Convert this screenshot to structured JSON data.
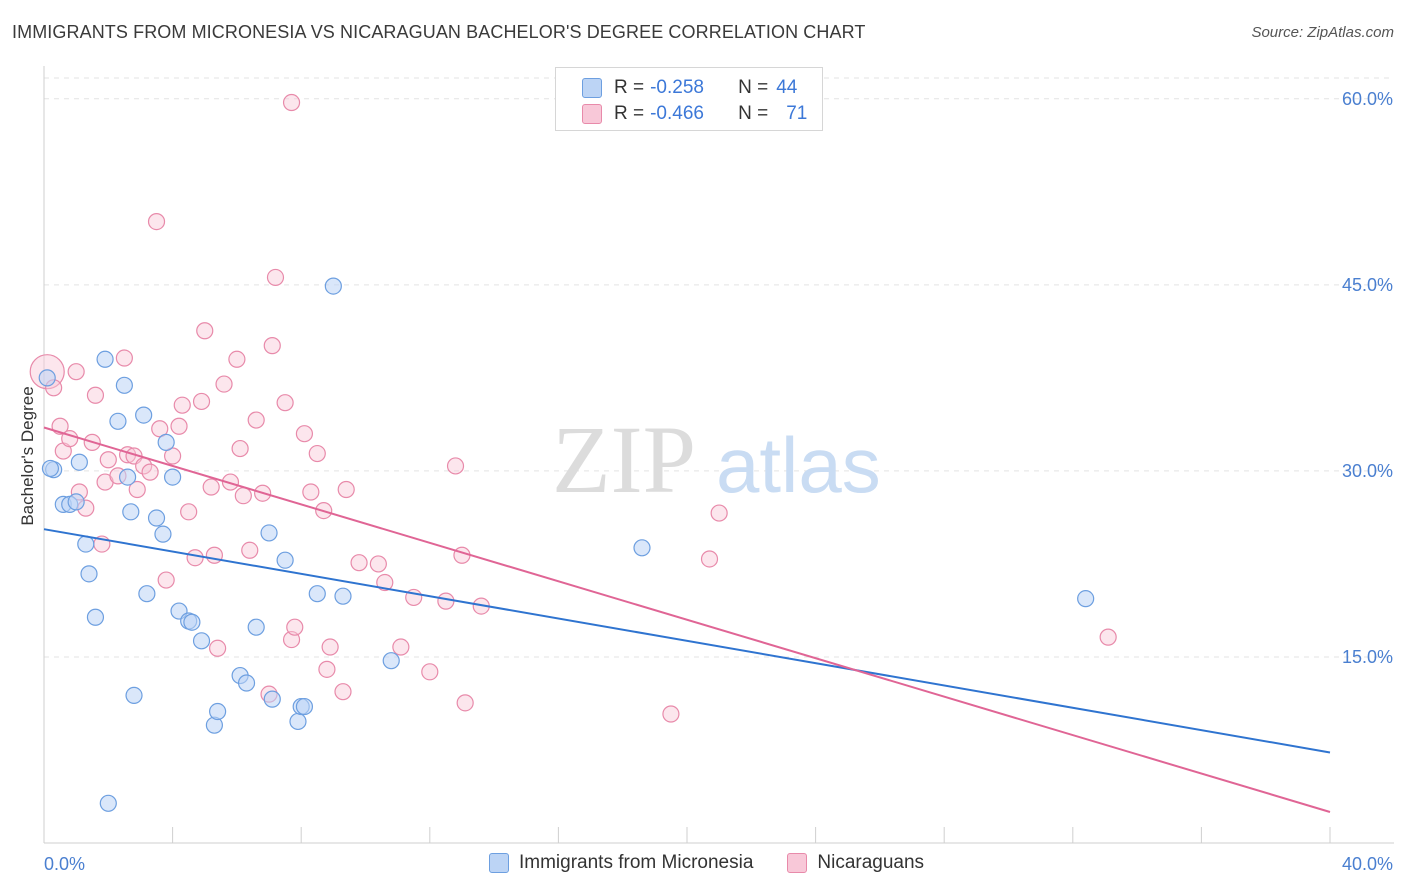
{
  "title": "IMMIGRANTS FROM MICRONESIA VS NICARAGUAN BACHELOR'S DEGREE CORRELATION CHART",
  "source": "Source: ZipAtlas.com",
  "watermark": {
    "zip": "ZIP",
    "atlas": "atlas"
  },
  "legend": {
    "rows": [
      {
        "r_label": "R =",
        "r_value": "-0.258",
        "n_label": "N =",
        "n_value": "44"
      },
      {
        "r_label": "R =",
        "r_value": "-0.466",
        "n_label": "N =",
        "n_value": "71"
      }
    ]
  },
  "bottom_legend": {
    "series1": "Immigrants from Micronesia",
    "series2": "Nicaraguans"
  },
  "colors": {
    "blue_fill": "#bcd4f5",
    "blue_stroke": "#6d9fe0",
    "blue_line": "#2f74d0",
    "pink_fill": "#f8c8d8",
    "pink_stroke": "#e88aaa",
    "pink_line": "#e06595",
    "grid": "#e3e3e3",
    "tick_text": "#4a7fd0"
  },
  "chart_data": {
    "type": "scatter",
    "title": "IMMIGRANTS FROM MICRONESIA VS NICARAGUAN BACHELOR'S DEGREE CORRELATION CHART",
    "xlabel": "",
    "ylabel": "Bachelor's Degree",
    "xlim": [
      0,
      40
    ],
    "ylim": [
      0,
      62
    ],
    "x_tick_labels": [
      "0.0%",
      "40.0%"
    ],
    "y_ticks": [
      15,
      30,
      45,
      60
    ],
    "y_tick_labels": [
      "15.0%",
      "30.0%",
      "45.0%",
      "60.0%"
    ],
    "grid": "horizontal dashed",
    "legend_position": "top-center",
    "series": [
      {
        "name": "Immigrants from Micronesia",
        "R": -0.258,
        "N": 44,
        "trend": {
          "x": [
            0,
            40
          ],
          "y": [
            25.3,
            7.3
          ]
        },
        "points": [
          [
            0.1,
            37.5
          ],
          [
            0.3,
            30.1
          ],
          [
            0.6,
            27.3
          ],
          [
            0.8,
            27.3
          ],
          [
            1.1,
            30.7
          ],
          [
            1.3,
            24.1
          ],
          [
            1.4,
            21.7
          ],
          [
            1.6,
            18.2
          ],
          [
            1.9,
            39.0
          ],
          [
            2.3,
            34.0
          ],
          [
            2.5,
            36.9
          ],
          [
            2.6,
            29.5
          ],
          [
            2.7,
            26.7
          ],
          [
            2.8,
            11.9
          ],
          [
            3.1,
            34.5
          ],
          [
            3.2,
            20.1
          ],
          [
            3.5,
            26.2
          ],
          [
            3.7,
            24.9
          ],
          [
            3.8,
            32.3
          ],
          [
            4.0,
            29.5
          ],
          [
            4.2,
            18.7
          ],
          [
            4.5,
            17.9
          ],
          [
            4.9,
            16.3
          ],
          [
            5.3,
            9.5
          ],
          [
            5.4,
            10.6
          ],
          [
            6.1,
            13.5
          ],
          [
            6.3,
            12.9
          ],
          [
            6.6,
            17.4
          ],
          [
            7.0,
            25.0
          ],
          [
            7.1,
            11.6
          ],
          [
            7.5,
            22.8
          ],
          [
            7.9,
            9.8
          ],
          [
            8.0,
            11.0
          ],
          [
            8.1,
            11.0
          ],
          [
            8.5,
            20.1
          ],
          [
            9.0,
            44.9
          ],
          [
            9.3,
            19.9
          ],
          [
            10.8,
            14.7
          ],
          [
            18.6,
            23.8
          ],
          [
            32.4,
            19.7
          ],
          [
            2.0,
            3.2
          ],
          [
            0.2,
            30.2
          ],
          [
            1.0,
            27.5
          ],
          [
            4.6,
            17.8
          ]
        ]
      },
      {
        "name": "Nicaraguans",
        "R": -0.466,
        "N": 71,
        "trend": {
          "x": [
            0,
            40
          ],
          "y": [
            33.5,
            2.5
          ]
        },
        "points": [
          [
            0.1,
            38.0
          ],
          [
            0.3,
            36.7
          ],
          [
            0.5,
            33.6
          ],
          [
            0.6,
            31.6
          ],
          [
            0.8,
            32.6
          ],
          [
            1.0,
            38.0
          ],
          [
            1.1,
            28.3
          ],
          [
            1.3,
            27.0
          ],
          [
            1.5,
            32.3
          ],
          [
            1.6,
            36.1
          ],
          [
            1.8,
            24.1
          ],
          [
            1.9,
            29.1
          ],
          [
            2.0,
            30.9
          ],
          [
            2.3,
            29.6
          ],
          [
            2.5,
            39.1
          ],
          [
            2.6,
            31.3
          ],
          [
            2.8,
            31.2
          ],
          [
            2.9,
            28.5
          ],
          [
            3.1,
            30.4
          ],
          [
            3.3,
            29.9
          ],
          [
            3.5,
            50.1
          ],
          [
            3.6,
            33.4
          ],
          [
            3.8,
            21.2
          ],
          [
            4.0,
            31.2
          ],
          [
            4.2,
            33.6
          ],
          [
            4.3,
            35.3
          ],
          [
            4.5,
            26.7
          ],
          [
            4.7,
            23.0
          ],
          [
            4.9,
            35.6
          ],
          [
            5.0,
            41.3
          ],
          [
            5.2,
            28.7
          ],
          [
            5.3,
            23.2
          ],
          [
            5.4,
            15.7
          ],
          [
            5.6,
            37.0
          ],
          [
            5.8,
            29.1
          ],
          [
            6.0,
            39.0
          ],
          [
            6.1,
            31.8
          ],
          [
            6.2,
            28.0
          ],
          [
            6.4,
            23.6
          ],
          [
            6.6,
            34.1
          ],
          [
            6.8,
            28.2
          ],
          [
            7.0,
            12.0
          ],
          [
            7.1,
            40.1
          ],
          [
            7.2,
            45.6
          ],
          [
            7.5,
            35.5
          ],
          [
            7.7,
            16.4
          ],
          [
            7.8,
            17.4
          ],
          [
            8.1,
            33.0
          ],
          [
            8.3,
            28.3
          ],
          [
            8.5,
            31.4
          ],
          [
            8.7,
            26.8
          ],
          [
            8.8,
            14.0
          ],
          [
            8.9,
            15.8
          ],
          [
            9.3,
            12.2
          ],
          [
            9.4,
            28.5
          ],
          [
            9.8,
            22.6
          ],
          [
            10.4,
            22.5
          ],
          [
            10.6,
            21.0
          ],
          [
            11.1,
            15.8
          ],
          [
            11.5,
            19.8
          ],
          [
            12.0,
            13.8
          ],
          [
            12.5,
            19.5
          ],
          [
            12.8,
            30.4
          ],
          [
            13.0,
            23.2
          ],
          [
            13.1,
            11.3
          ],
          [
            13.6,
            19.1
          ],
          [
            19.5,
            10.4
          ],
          [
            20.7,
            22.9
          ],
          [
            21.0,
            26.6
          ],
          [
            33.1,
            16.6
          ],
          [
            7.7,
            59.7
          ]
        ]
      }
    ]
  }
}
